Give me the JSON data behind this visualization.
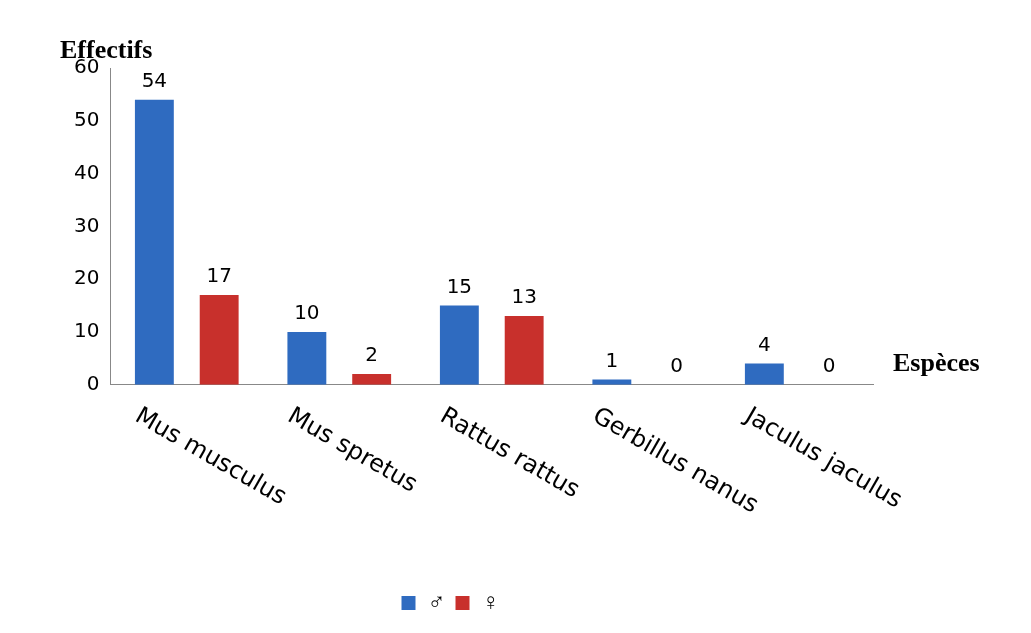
{
  "chart_data": {
    "type": "bar",
    "ylabel": "Effectifs",
    "xlabel": "Espèces",
    "categories": [
      "Mus musculus",
      "Mus spretus",
      "Rattus rattus",
      "Gerbillus nanus",
      "Jaculus jaculus"
    ],
    "series": [
      {
        "name": "♂",
        "color": "#2f6bc0",
        "values": [
          54,
          10,
          15,
          1,
          4
        ]
      },
      {
        "name": "♀",
        "color": "#c8302c",
        "values": [
          17,
          2,
          13,
          0,
          0
        ]
      }
    ],
    "ylim": [
      0,
      60
    ],
    "yticks": [
      0,
      10,
      20,
      30,
      40,
      50,
      60
    ],
    "grid": false,
    "data_labels": true,
    "legend": "bottom"
  }
}
